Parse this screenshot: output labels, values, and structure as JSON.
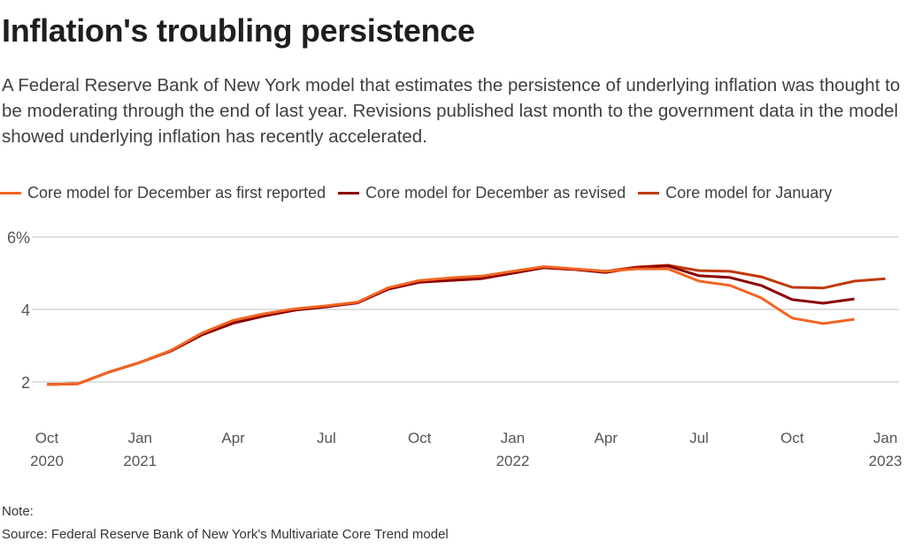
{
  "header": {
    "title": "Inflation's troubling persistence",
    "subtitle": "A Federal Reserve Bank of New York model that estimates the persistence of underlying inflation was thought to be moderating through the end of last year. Revisions published last month to the government data in the model showed underlying inflation has recently accelerated."
  },
  "footer": {
    "note": "Note:",
    "source": "Source: Federal Reserve Bank of New York's Multivariate Core Trend model"
  },
  "chart_data": {
    "type": "line",
    "title": "Inflation's troubling persistence",
    "xlabel": "",
    "ylabel": "",
    "ylim": [
      1,
      6
    ],
    "grid": true,
    "legend_position": "top",
    "y_ticks": [
      {
        "value": 2,
        "label": "2"
      },
      {
        "value": 4,
        "label": "4"
      },
      {
        "value": 6,
        "label": "6%"
      }
    ],
    "x_ticks": [
      {
        "index": 0,
        "month": "Oct",
        "year": "2020"
      },
      {
        "index": 3,
        "month": "Jan",
        "year": "2021"
      },
      {
        "index": 6,
        "month": "Apr",
        "year": ""
      },
      {
        "index": 9,
        "month": "Jul",
        "year": ""
      },
      {
        "index": 12,
        "month": "Oct",
        "year": ""
      },
      {
        "index": 15,
        "month": "Jan",
        "year": "2022"
      },
      {
        "index": 18,
        "month": "Apr",
        "year": ""
      },
      {
        "index": 21,
        "month": "Jul",
        "year": ""
      },
      {
        "index": 24,
        "month": "Oct",
        "year": ""
      },
      {
        "index": 27,
        "month": "Jan",
        "year": "2023"
      }
    ],
    "x": [
      "2020-10",
      "2020-11",
      "2020-12",
      "2021-01",
      "2021-02",
      "2021-03",
      "2021-04",
      "2021-05",
      "2021-06",
      "2021-07",
      "2021-08",
      "2021-09",
      "2021-10",
      "2021-11",
      "2021-12",
      "2022-01",
      "2022-02",
      "2022-03",
      "2022-04",
      "2022-05",
      "2022-06",
      "2022-07",
      "2022-08",
      "2022-09",
      "2022-10",
      "2022-11",
      "2022-12",
      "2023-01"
    ],
    "series": [
      {
        "name": "Core model for December as first reported",
        "color": "#f26522",
        "values": [
          1.93,
          1.95,
          2.27,
          2.54,
          2.87,
          3.35,
          3.7,
          3.88,
          4.02,
          4.1,
          4.2,
          4.6,
          4.8,
          4.87,
          4.92,
          5.05,
          5.18,
          5.12,
          5.05,
          5.12,
          5.12,
          4.78,
          4.66,
          4.32,
          3.76,
          3.61,
          3.73,
          null
        ]
      },
      {
        "name": "Core model for December as revised",
        "color": "#8b0000",
        "values": [
          1.93,
          1.95,
          2.27,
          2.54,
          2.85,
          3.3,
          3.62,
          3.82,
          3.98,
          4.07,
          4.18,
          4.56,
          4.75,
          4.8,
          4.85,
          5.0,
          5.15,
          5.1,
          5.02,
          5.15,
          5.2,
          4.93,
          4.88,
          4.66,
          4.27,
          4.17,
          4.29,
          null
        ]
      },
      {
        "name": "Core model for January",
        "color": "#c0390b",
        "values": [
          1.93,
          1.95,
          2.27,
          2.54,
          2.86,
          3.32,
          3.65,
          3.85,
          4.0,
          4.08,
          4.19,
          4.58,
          4.77,
          4.84,
          4.88,
          5.02,
          5.17,
          5.11,
          5.05,
          5.17,
          5.22,
          5.07,
          5.05,
          4.9,
          4.61,
          4.59,
          4.78,
          4.85
        ]
      }
    ]
  }
}
